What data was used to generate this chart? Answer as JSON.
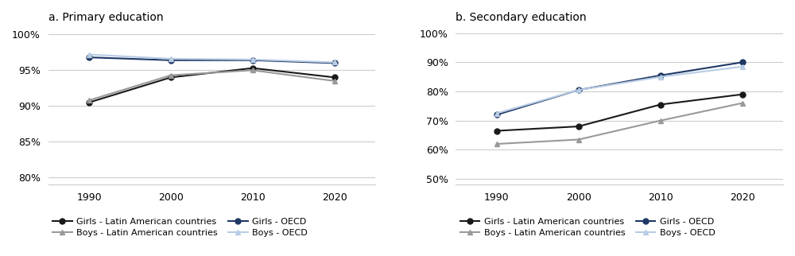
{
  "years": [
    1990,
    2000,
    2010,
    2020
  ],
  "primary": {
    "girls_latin": [
      90.5,
      94.0,
      95.3,
      94.0
    ],
    "boys_latin": [
      90.8,
      94.3,
      95.0,
      93.5
    ],
    "girls_oecd": [
      96.8,
      96.4,
      96.4,
      96.0
    ],
    "boys_oecd": [
      97.2,
      96.6,
      96.5,
      96.1
    ]
  },
  "secondary": {
    "girls_latin": [
      66.5,
      68.0,
      75.5,
      79.0
    ],
    "boys_latin": [
      62.0,
      63.5,
      70.0,
      76.0
    ],
    "girls_oecd": [
      72.0,
      80.5,
      85.5,
      90.0
    ],
    "boys_oecd": [
      72.5,
      80.5,
      85.0,
      88.5
    ]
  },
  "colors": {
    "girls_latin": "#1a1a1a",
    "boys_latin": "#999999",
    "girls_oecd": "#1f3864",
    "boys_oecd": "#b8cce4"
  },
  "panel_a_title": "a. Primary education",
  "panel_b_title": "b. Secondary education",
  "legend_labels": {
    "girls_latin": "Girls - Latin American countries",
    "boys_latin": "Boys - Latin American countries",
    "girls_oecd": "Girls - OECD",
    "boys_oecd": "Boys - OECD"
  },
  "primary_ylim": [
    79,
    101
  ],
  "primary_yticks": [
    80,
    85,
    90,
    95,
    100
  ],
  "secondary_ylim": [
    48,
    102
  ],
  "secondary_yticks": [
    50,
    60,
    70,
    80,
    90,
    100
  ]
}
